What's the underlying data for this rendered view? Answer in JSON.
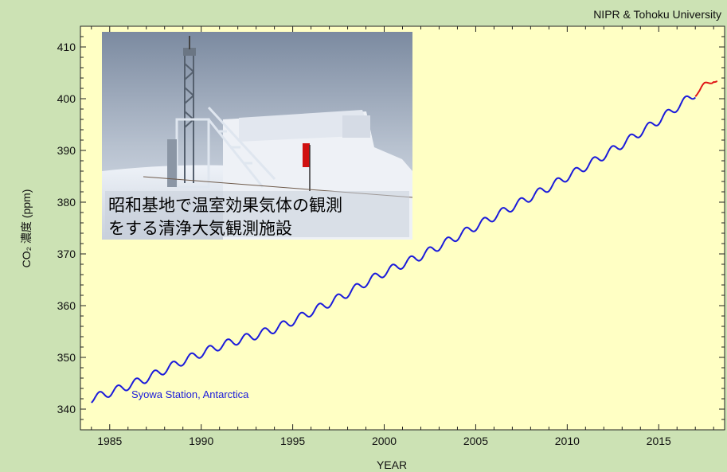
{
  "credit": "NIPR & Tohoku University",
  "photo_caption": "昭和基地で温室効果気体の観測\nをする清浄大気観測施設",
  "colors": {
    "background": "#cce2b4",
    "plot_area": "#ffffc4",
    "observed": "#1a1adb",
    "recent": "#e01818"
  },
  "chart_data": {
    "type": "line",
    "xlabel": "YEAR",
    "ylabel": "CO₂ 濃度 (ppm)",
    "xlim": [
      1983.4,
      2018.6
    ],
    "ylim": [
      336,
      414
    ],
    "x_ticks": [
      1985,
      1990,
      1995,
      2000,
      2005,
      2010,
      2015
    ],
    "y_ticks": [
      340,
      350,
      360,
      370,
      380,
      390,
      400,
      410
    ],
    "grid": false,
    "annotation": "Syowa Station, Antarctica",
    "series": [
      {
        "color": "#1a1adb",
        "x": [
          1984.0,
          1985.0,
          1986.0,
          1987.0,
          1988.0,
          1989.0,
          1990.0,
          1991.0,
          1992.0,
          1993.0,
          1994.0,
          1995.0,
          1996.0,
          1997.0,
          1998.0,
          1999.0,
          2000.0,
          2001.0,
          2002.0,
          2003.0,
          2004.0,
          2005.0,
          2006.0,
          2007.0,
          2008.0,
          2009.0,
          2010.0,
          2011.0,
          2012.0,
          2013.0,
          2014.0,
          2015.0,
          2016.0,
          2017.0
        ],
        "y": [
          342.0,
          343.2,
          344.5,
          345.9,
          347.6,
          349.3,
          350.8,
          352.2,
          353.3,
          354.3,
          355.5,
          357.0,
          358.8,
          360.5,
          362.4,
          364.5,
          366.4,
          368.0,
          369.6,
          371.5,
          373.4,
          375.3,
          377.2,
          379.1,
          381.0,
          382.9,
          384.9,
          386.9,
          389.0,
          391.2,
          393.5,
          395.8,
          398.4,
          401.0
        ],
        "seasonal_amplitude_ppm": 0.8
      },
      {
        "color": "#e01818",
        "x": [
          2017.0,
          2017.25,
          2017.5,
          2017.75,
          2018.0,
          2018.2
        ],
        "y": [
          401.0,
          401.5,
          402.5,
          403.2,
          403.8,
          403.4
        ],
        "seasonal_amplitude_ppm": 0.6
      }
    ]
  }
}
